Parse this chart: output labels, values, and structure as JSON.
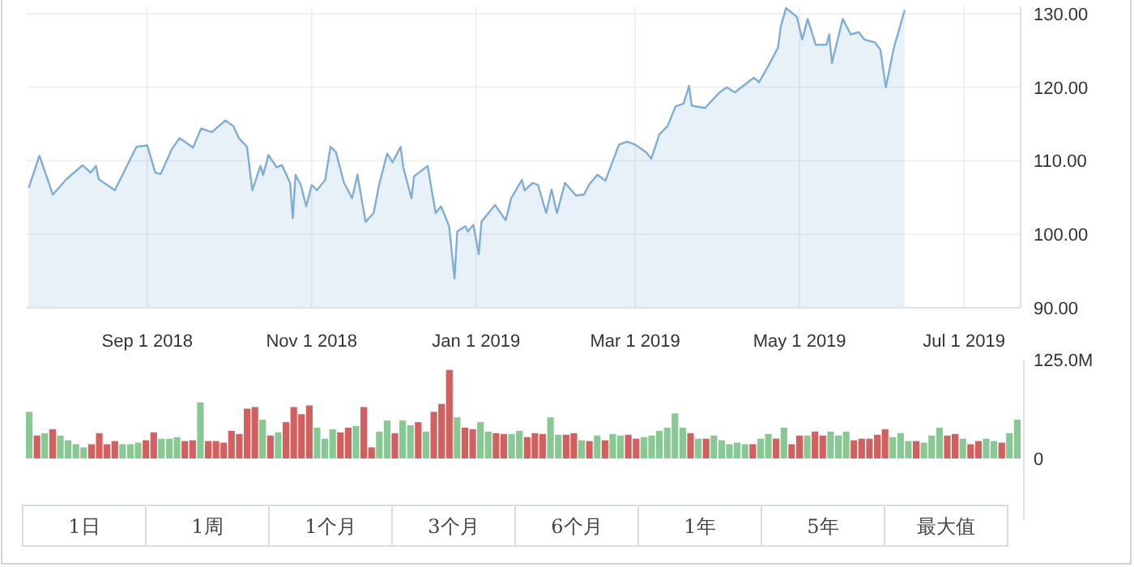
{
  "chart_data": [
    {
      "type": "area",
      "x": [
        "2018-07-19",
        "2018-07-23",
        "2018-07-28",
        "2018-08-02",
        "2018-08-08",
        "2018-08-11",
        "2018-08-13",
        "2018-08-14",
        "2018-08-20",
        "2018-08-28",
        "2018-09-01",
        "2018-09-04",
        "2018-09-06",
        "2018-09-10",
        "2018-09-13",
        "2018-09-15",
        "2018-09-18",
        "2018-09-21",
        "2018-09-25",
        "2018-09-30",
        "2018-10-03",
        "2018-10-05",
        "2018-10-08",
        "2018-10-10",
        "2018-10-13",
        "2018-10-14",
        "2018-10-16",
        "2018-10-19",
        "2018-10-21",
        "2018-10-24",
        "2018-10-25",
        "2018-10-26",
        "2018-10-28",
        "2018-10-30",
        "2018-11-01",
        "2018-11-03",
        "2018-11-06",
        "2018-11-08",
        "2018-11-10",
        "2018-11-13",
        "2018-11-16",
        "2018-11-18",
        "2018-11-21",
        "2018-11-24",
        "2018-11-26",
        "2018-11-29",
        "2018-12-01",
        "2018-12-04",
        "2018-12-05",
        "2018-12-08",
        "2018-12-09",
        "2018-12-14",
        "2018-12-17",
        "2018-12-19",
        "2018-12-22",
        "2018-12-24",
        "2018-12-25",
        "2018-12-28",
        "2018-12-29",
        "2018-12-31",
        "2019-01-02",
        "2019-01-03",
        "2019-01-08",
        "2019-01-12",
        "2019-01-14",
        "2019-01-18",
        "2019-01-19",
        "2019-01-22",
        "2019-01-24",
        "2019-01-27",
        "2019-01-29",
        "2019-01-31",
        "2019-02-03",
        "2019-02-07",
        "2019-02-10",
        "2019-02-12",
        "2019-02-15",
        "2019-02-18",
        "2019-02-23",
        "2019-02-26",
        "2019-03-01",
        "2019-03-05",
        "2019-03-07",
        "2019-03-10",
        "2019-03-13",
        "2019-03-16",
        "2019-03-19",
        "2019-03-21",
        "2019-03-22",
        "2019-03-27",
        "2019-04-01",
        "2019-04-04",
        "2019-04-07",
        "2019-04-09",
        "2019-04-14",
        "2019-04-16",
        "2019-04-20",
        "2019-04-23",
        "2019-04-24",
        "2019-04-26",
        "2019-04-30",
        "2019-05-02",
        "2019-05-04",
        "2019-05-07",
        "2019-05-11",
        "2019-05-12",
        "2019-05-13",
        "2019-05-17",
        "2019-05-20",
        "2019-05-23",
        "2019-05-25",
        "2019-05-29",
        "2019-05-31",
        "2019-06-02",
        "2019-06-05",
        "2019-06-09"
      ],
      "series": [
        {
          "color": "#7eadd6",
          "values": [
            106.3,
            110.7,
            105.4,
            107.5,
            109.4,
            108.4,
            109.3,
            107.5,
            106.0,
            111.9,
            112.1,
            108.4,
            108.2,
            111.5,
            113.1,
            112.6,
            111.8,
            114.4,
            113.9,
            115.5,
            114.7,
            113.1,
            111.9,
            106.0,
            109.3,
            108.1,
            110.8,
            109.1,
            109.4,
            107.0,
            102.2,
            108.1,
            106.7,
            103.8,
            106.7,
            106.0,
            107.4,
            111.9,
            111.2,
            107.0,
            104.9,
            108.1,
            101.7,
            102.9,
            106.7,
            111.0,
            109.8,
            111.9,
            109.1,
            104.9,
            107.9,
            109.3,
            102.9,
            103.8,
            101.1,
            94.0,
            100.4,
            101.1,
            100.4,
            101.3,
            97.3,
            101.7,
            104.0,
            101.9,
            104.9,
            107.4,
            106.0,
            107.0,
            106.7,
            102.9,
            106.1,
            102.9,
            107.0,
            105.3,
            105.4,
            106.8,
            108.1,
            107.3,
            112.2,
            112.6,
            112.2,
            111.2,
            110.3,
            113.6,
            114.7,
            117.4,
            117.8,
            120.2,
            117.5,
            117.2,
            119.2,
            120.0,
            119.3,
            119.9,
            121.3,
            120.7,
            123.3,
            125.4,
            128.2,
            130.8,
            129.6,
            126.5,
            129.3,
            125.8,
            125.8,
            127.2,
            123.3,
            129.3,
            127.2,
            127.5,
            126.5,
            126.1,
            125.1,
            120.0,
            125.4,
            130.5
          ]
        }
      ],
      "xlim": [
        "2018-07-18",
        "2019-07-22"
      ],
      "xticks": [
        {
          "value": "2018-09-01",
          "label": "Sep 1 2018"
        },
        {
          "value": "2018-11-01",
          "label": "Nov 1 2018"
        },
        {
          "value": "2019-01-01",
          "label": "Jan 1 2019"
        },
        {
          "value": "2019-03-01",
          "label": "Mar 1 2019"
        },
        {
          "value": "2019-05-01",
          "label": "May 1 2019"
        },
        {
          "value": "2019-07-01",
          "label": "Jul 1 2019"
        }
      ],
      "ylim": [
        90,
        131
      ],
      "yticks": [
        {
          "value": 90,
          "label": "90.00"
        },
        {
          "value": 100,
          "label": "100.00"
        },
        {
          "value": 110,
          "label": "110.00"
        },
        {
          "value": 120,
          "label": "120.00"
        },
        {
          "value": 130,
          "label": "130.00"
        }
      ],
      "grid": true
    },
    {
      "type": "bar",
      "categories": [
        null,
        null,
        null,
        null,
        null,
        null,
        null,
        null,
        null,
        null,
        null,
        null,
        null,
        null,
        null,
        null,
        null,
        null,
        null,
        null,
        null,
        null,
        null,
        null,
        null,
        null,
        null,
        null,
        null,
        null,
        null,
        null,
        null,
        null,
        null,
        null,
        null,
        null,
        null,
        null,
        null,
        null,
        null,
        null,
        null,
        null,
        null,
        null,
        null,
        null,
        null,
        null,
        null,
        null,
        null,
        null,
        null,
        null,
        null,
        null,
        null,
        null,
        null,
        null,
        null,
        null,
        null,
        null,
        null,
        null,
        null,
        null,
        null,
        null,
        null,
        null,
        null,
        null,
        null,
        null,
        null,
        null,
        null,
        null,
        null,
        null,
        null,
        null,
        null,
        null,
        null,
        null,
        null,
        null,
        null,
        null,
        null,
        null,
        null,
        null,
        null,
        null,
        null,
        null,
        null,
        null,
        null,
        null,
        null,
        null,
        null,
        null,
        null,
        null,
        null,
        null,
        null,
        null,
        null,
        null,
        null,
        null,
        null,
        null,
        null,
        null,
        null,
        null
      ],
      "values": [
        59,
        29,
        32,
        37,
        29,
        23,
        18,
        14,
        18,
        32,
        18,
        22,
        18,
        18,
        20,
        23,
        33,
        25,
        25,
        27,
        22,
        23,
        71,
        22,
        22,
        20,
        35,
        31,
        63,
        65,
        49,
        29,
        33,
        46,
        65,
        56,
        67,
        39,
        25,
        37,
        33,
        39,
        41,
        65,
        14,
        34,
        48,
        32,
        48,
        42,
        46,
        34,
        59,
        69,
        112,
        52,
        39,
        37,
        46,
        34,
        32,
        31,
        31,
        35,
        27,
        32,
        31,
        52,
        30,
        30,
        32,
        23,
        22,
        29,
        23,
        31,
        29,
        30,
        25,
        27,
        29,
        35,
        39,
        57,
        39,
        32,
        25,
        25,
        29,
        23,
        18,
        20,
        18,
        18,
        25,
        31,
        25,
        39,
        18,
        29,
        29,
        34,
        29,
        34,
        29,
        34,
        23,
        25,
        25,
        30,
        37,
        27,
        32,
        22,
        22,
        20,
        29,
        39,
        29,
        31,
        25,
        18,
        22,
        25,
        22,
        20,
        32,
        49
      ],
      "colors": [
        "#88c892",
        "#d3605e",
        "#88c892",
        "#d3605e",
        "#88c892",
        "#88c892",
        "#88c892",
        "#88c892",
        "#d3605e",
        "#d3605e",
        "#d3605e",
        "#d3605e",
        "#88c892",
        "#88c892",
        "#88c892",
        "#d3605e",
        "#d3605e",
        "#88c892",
        "#88c892",
        "#88c892",
        "#d3605e",
        "#d3605e",
        "#88c892",
        "#d3605e",
        "#d3605e",
        "#d3605e",
        "#d3605e",
        "#d3605e",
        "#d3605e",
        "#d3605e",
        "#88c892",
        "#d3605e",
        "#88c892",
        "#d3605e",
        "#d3605e",
        "#d3605e",
        "#d3605e",
        "#88c892",
        "#88c892",
        "#88c892",
        "#d3605e",
        "#d3605e",
        "#88c892",
        "#d3605e",
        "#d3605e",
        "#88c892",
        "#88c892",
        "#d3605e",
        "#88c892",
        "#88c892",
        "#d3605e",
        "#88c892",
        "#d3605e",
        "#d3605e",
        "#d3605e",
        "#88c892",
        "#d3605e",
        "#d3605e",
        "#88c892",
        "#88c892",
        "#d3605e",
        "#d3605e",
        "#88c892",
        "#88c892",
        "#d3605e",
        "#d3605e",
        "#d3605e",
        "#88c892",
        "#88c892",
        "#d3605e",
        "#d3605e",
        "#88c892",
        "#d3605e",
        "#88c892",
        "#d3605e",
        "#88c892",
        "#88c892",
        "#d3605e",
        "#d3605e",
        "#88c892",
        "#88c892",
        "#88c892",
        "#88c892",
        "#88c892",
        "#88c892",
        "#d3605e",
        "#88c892",
        "#d3605e",
        "#88c892",
        "#88c892",
        "#88c892",
        "#88c892",
        "#88c892",
        "#d3605e",
        "#88c892",
        "#88c892",
        "#d3605e",
        "#88c892",
        "#d3605e",
        "#d3605e",
        "#88c892",
        "#d3605e",
        "#d3605e",
        "#88c892",
        "#88c892",
        "#88c892",
        "#d3605e",
        "#d3605e",
        "#d3605e",
        "#d3605e",
        "#d3605e",
        "#88c892",
        "#88c892",
        "#88c892",
        "#d3605e",
        "#88c892",
        "#88c892",
        "#88c892",
        "#d3605e",
        "#d3605e",
        "#88c892",
        "#d3605e",
        "#d3605e",
        "#88c892",
        "#88c892",
        "#d3605e",
        "#88c892",
        "#88c892"
      ],
      "ylim": [
        0,
        125
      ],
      "yticks": [
        0,
        {
          "value": 125,
          "label": "125.0M"
        }
      ],
      "tick_labels": "y",
      "annotations": [
        "1日",
        "1周",
        "1个月",
        "3个月",
        "6个月",
        "1年",
        "5年",
        "最大值"
      ]
    }
  ]
}
